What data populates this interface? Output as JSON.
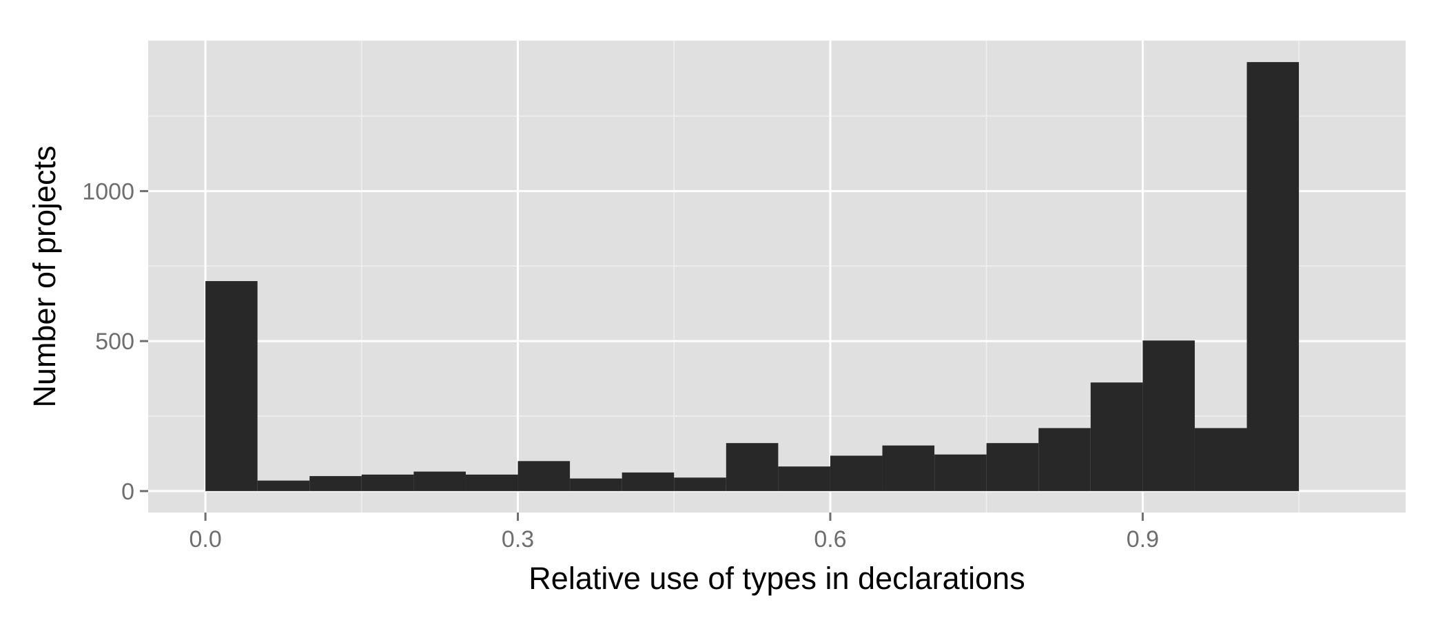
{
  "chart_data": {
    "type": "bar",
    "subtype": "histogram",
    "title": "",
    "xlabel": "Relative use of types in declarations",
    "ylabel": "Number of projects",
    "bin_width": 0.05,
    "bins": [
      {
        "start": 0.0,
        "end": 0.05,
        "count": 700
      },
      {
        "start": 0.05,
        "end": 0.1,
        "count": 35
      },
      {
        "start": 0.1,
        "end": 0.15,
        "count": 50
      },
      {
        "start": 0.15,
        "end": 0.2,
        "count": 55
      },
      {
        "start": 0.2,
        "end": 0.25,
        "count": 65
      },
      {
        "start": 0.25,
        "end": 0.3,
        "count": 55
      },
      {
        "start": 0.3,
        "end": 0.35,
        "count": 100
      },
      {
        "start": 0.35,
        "end": 0.4,
        "count": 42
      },
      {
        "start": 0.4,
        "end": 0.45,
        "count": 62
      },
      {
        "start": 0.45,
        "end": 0.5,
        "count": 45
      },
      {
        "start": 0.5,
        "end": 0.55,
        "count": 160
      },
      {
        "start": 0.55,
        "end": 0.6,
        "count": 82
      },
      {
        "start": 0.6,
        "end": 0.65,
        "count": 118
      },
      {
        "start": 0.65,
        "end": 0.7,
        "count": 152
      },
      {
        "start": 0.7,
        "end": 0.75,
        "count": 122
      },
      {
        "start": 0.75,
        "end": 0.8,
        "count": 160
      },
      {
        "start": 0.8,
        "end": 0.85,
        "count": 210
      },
      {
        "start": 0.85,
        "end": 0.9,
        "count": 362
      },
      {
        "start": 0.9,
        "end": 0.95,
        "count": 502
      },
      {
        "start": 0.95,
        "end": 1.0,
        "count": 210
      },
      {
        "start": 1.0,
        "end": 1.05,
        "count": 1430
      }
    ],
    "xlim": [
      -0.055,
      1.1525
    ],
    "ylim": [
      -71.5,
      1501.5
    ],
    "x_ticks": [
      {
        "value": 0.0,
        "label": "0.0"
      },
      {
        "value": 0.3,
        "label": "0.3"
      },
      {
        "value": 0.6,
        "label": "0.6"
      },
      {
        "value": 0.9,
        "label": "0.9"
      }
    ],
    "y_ticks": [
      {
        "value": 0,
        "label": "0"
      },
      {
        "value": 500,
        "label": "500"
      },
      {
        "value": 1000,
        "label": "1000"
      }
    ],
    "x_minor_grid": [
      0.15,
      0.45,
      0.75,
      1.05
    ],
    "y_minor_grid": [
      250,
      750,
      1250
    ],
    "grid": true,
    "legend": false,
    "colors": {
      "panel": "#e0e0e0",
      "bar": "#282828",
      "grid_major": "#ffffff",
      "grid_minor": "#f0f0f0",
      "tick": "#6e6e6e"
    }
  }
}
